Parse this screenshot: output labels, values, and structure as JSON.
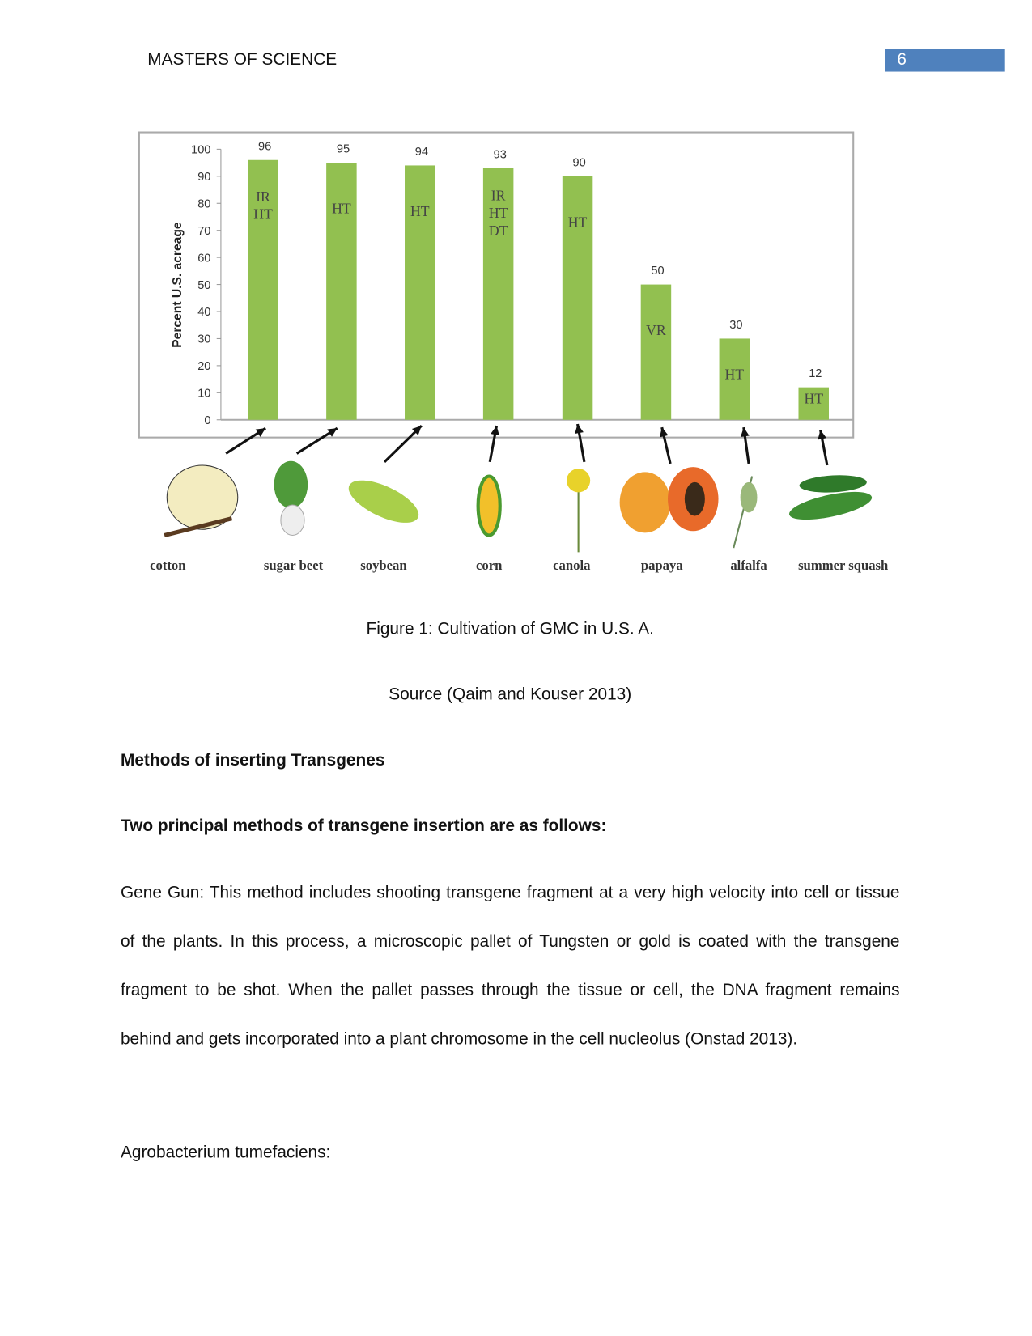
{
  "header": {
    "title": "MASTERS OF SCIENCE",
    "page_number": "6"
  },
  "chart_data": {
    "type": "bar",
    "y_label": "Percent U.S. acreage",
    "categories": [
      "cotton",
      "sugar beet",
      "soybean",
      "corn",
      "canola",
      "papaya",
      "alfalfa",
      "summer squash"
    ],
    "values": [
      96,
      95,
      94,
      93,
      90,
      50,
      30,
      12
    ],
    "traits": [
      [
        "IR",
        "HT"
      ],
      [
        "HT"
      ],
      [
        "HT"
      ],
      [
        "IR",
        "HT",
        "DT"
      ],
      [
        "HT"
      ],
      [
        "VR"
      ],
      [
        "HT"
      ],
      [
        "HT"
      ]
    ],
    "color": "#92c050",
    "ylim": [
      0,
      100
    ],
    "yticks": [
      0,
      10,
      20,
      30,
      40,
      50,
      60,
      70,
      80,
      90,
      100
    ]
  },
  "figure": {
    "caption": "Figure 1: Cultivation of GMC in U.S. A.",
    "source": "Source (Qaim and Kouser 2013)"
  },
  "body": {
    "heading": "Methods of inserting Transgenes",
    "subheading": "Two principal methods of transgene insertion are as follows:",
    "paragraph": "Gene Gun: This method includes shooting transgene fragment at a very high velocity into cell or tissue of the plants. In this process, a microscopic pallet of Tungsten or gold is coated with the transgene fragment to be shot. When the pallet passes through the tissue or cell, the DNA fragment remains behind and gets incorporated into a plant chromosome in the cell nucleolus (Onstad 2013).",
    "last_line": "Agrobacterium tumefaciens:"
  }
}
